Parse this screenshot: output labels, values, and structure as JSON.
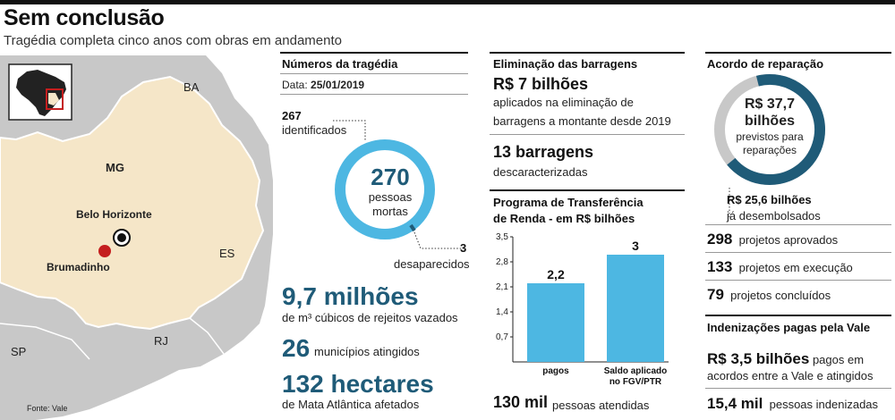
{
  "header": {
    "title": "Sem conclusão",
    "subtitle": "Tragédia completa cinco anos com obras em andamento"
  },
  "map": {
    "labels": {
      "ba": "BA",
      "mg": "MG",
      "bh": "Belo Horizonte",
      "brumadinho": "Brumadinho",
      "es": "ES",
      "rj": "RJ",
      "sp": "SP"
    },
    "source": "Fonte: Vale",
    "colors": {
      "state": "#f5e6c8",
      "neighbors": "#c8c8c8",
      "marker": "#c41e1e"
    }
  },
  "tragedy": {
    "heading": "Números da tragédia",
    "date_label": "Data:",
    "date_value": "25/01/2019",
    "identified_value": "267",
    "identified_label": "identificados",
    "deaths_value": "270",
    "deaths_label_1": "pessoas",
    "deaths_label_2": "mortas",
    "missing_value": "3",
    "missing_label": "desaparecidos",
    "donut": {
      "identified": 267,
      "missing": 3,
      "total": 270
    },
    "tailings_value": "9,7 milhões",
    "tailings_label": "de m³ cúbicos de rejeitos vazados",
    "cities_value": "26",
    "cities_label": "municípios atingidos",
    "hectares_value": "132 hectares",
    "hectares_label": "de Mata Atlântica afetados"
  },
  "dams": {
    "heading": "Eliminação das barragens",
    "amount": "R$ 7 bilhões",
    "amount_desc_1": "aplicados na eliminação de",
    "amount_desc_2": "barragens a montante desde 2019",
    "count": "13 barragens",
    "count_desc": "descaracterizadas"
  },
  "program": {
    "heading_1": "Programa de Transferência",
    "heading_2": "de Renda - em R$ bilhões",
    "people_value": "130 mil",
    "people_label": "pessoas atendidas"
  },
  "chart_data": {
    "type": "bar",
    "categories": [
      "pagos",
      "Saldo aplicado no FGV/PTR"
    ],
    "category_lines": [
      [
        "pagos"
      ],
      [
        "Saldo aplicado",
        "no FGV/PTR"
      ]
    ],
    "values": [
      2.2,
      3
    ],
    "value_labels": [
      "2,2",
      "3"
    ],
    "yticks": [
      0.7,
      1.4,
      2.1,
      2.8,
      3.5
    ],
    "ytick_labels": [
      "0,7",
      "1,4",
      "2,1",
      "2,8",
      "3,5"
    ],
    "ylim": [
      0,
      3.5
    ],
    "color": "#4db7e2",
    "title": "",
    "xlabel": "",
    "ylabel": ""
  },
  "agreement": {
    "heading": "Acordo de reparação",
    "total_value": "R$ 37,7",
    "total_unit": "bilhões",
    "total_desc_1": "previstos para",
    "total_desc_2": "reparações",
    "paid_value": "R$ 25,6 bilhões",
    "paid_label": "já desembolsados",
    "donut": {
      "total": 37.7,
      "paid": 25.6
    },
    "projects": [
      {
        "value": "298",
        "label": "projetos aprovados"
      },
      {
        "value": "133",
        "label": "projetos em execução"
      },
      {
        "value": "79",
        "label": "projetos concluídos"
      }
    ]
  },
  "indemnities": {
    "heading": "Indenizações pagas pela Vale",
    "amount": "R$ 3,5 bilhões",
    "amount_desc_1": "pagos em",
    "amount_desc_2": "acordos entre a Vale e atingidos",
    "people_value": "15,4 mil",
    "people_label": "pessoas indenizadas"
  }
}
